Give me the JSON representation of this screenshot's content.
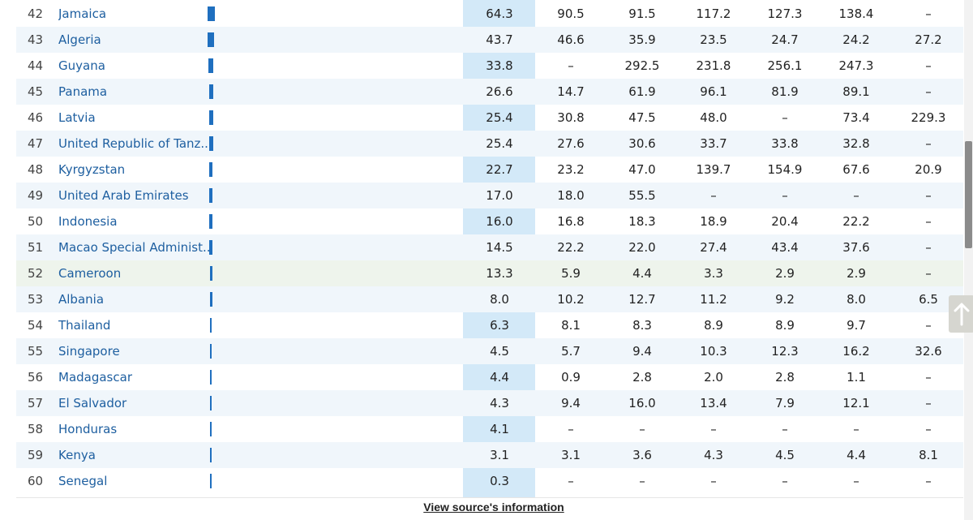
{
  "columns_x": [
    616,
    704,
    792,
    880,
    968,
    1056,
    1145
  ],
  "rows": [
    {
      "rank": "42",
      "name": "Jamaica",
      "bar": 9,
      "values": [
        "64.3",
        "90.5",
        "91.5",
        "117.2",
        "127.3",
        "138.4",
        "–"
      ]
    },
    {
      "rank": "43",
      "name": "Algeria",
      "bar": 8,
      "values": [
        "43.7",
        "46.6",
        "35.9",
        "23.5",
        "24.7",
        "24.2",
        "27.2"
      ]
    },
    {
      "rank": "44",
      "name": "Guyana",
      "bar": 6,
      "values": [
        "33.8",
        "–",
        "292.5",
        "231.8",
        "256.1",
        "247.3",
        "–"
      ]
    },
    {
      "rank": "45",
      "name": "Panama",
      "bar": 5,
      "values": [
        "26.6",
        "14.7",
        "61.9",
        "96.1",
        "81.9",
        "89.1",
        "–"
      ]
    },
    {
      "rank": "46",
      "name": "Latvia",
      "bar": 5,
      "values": [
        "25.4",
        "30.8",
        "47.5",
        "48.0",
        "–",
        "73.4",
        "229.3"
      ]
    },
    {
      "rank": "47",
      "name": "United Republic of Tanz...",
      "bar": 5,
      "values": [
        "25.4",
        "27.6",
        "30.6",
        "33.7",
        "33.8",
        "32.8",
        "–"
      ]
    },
    {
      "rank": "48",
      "name": "Kyrgyzstan",
      "bar": 4,
      "values": [
        "22.7",
        "23.2",
        "47.0",
        "139.7",
        "154.9",
        "67.6",
        "20.9"
      ]
    },
    {
      "rank": "49",
      "name": "United Arab Emirates",
      "bar": 4,
      "values": [
        "17.0",
        "18.0",
        "55.5",
        "–",
        "–",
        "–",
        "–"
      ]
    },
    {
      "rank": "50",
      "name": "Indonesia",
      "bar": 4,
      "values": [
        "16.0",
        "16.8",
        "18.3",
        "18.9",
        "20.4",
        "22.2",
        "–"
      ]
    },
    {
      "rank": "51",
      "name": "Macao Special Administ...",
      "bar": 4,
      "values": [
        "14.5",
        "22.2",
        "22.0",
        "27.4",
        "43.4",
        "37.6",
        "–"
      ]
    },
    {
      "rank": "52",
      "name": "Cameroon",
      "bar": 3,
      "values": [
        "13.3",
        "5.9",
        "4.4",
        "3.3",
        "2.9",
        "2.9",
        "–"
      ]
    },
    {
      "rank": "53",
      "name": "Albania",
      "bar": 3,
      "values": [
        "8.0",
        "10.2",
        "12.7",
        "11.2",
        "9.2",
        "8.0",
        "6.5"
      ]
    },
    {
      "rank": "54",
      "name": "Thailand",
      "bar": 2,
      "values": [
        "6.3",
        "8.1",
        "8.3",
        "8.9",
        "8.9",
        "9.7",
        "–"
      ]
    },
    {
      "rank": "55",
      "name": "Singapore",
      "bar": 2,
      "values": [
        "4.5",
        "5.7",
        "9.4",
        "10.3",
        "12.3",
        "16.2",
        "32.6"
      ]
    },
    {
      "rank": "56",
      "name": "Madagascar",
      "bar": 2,
      "values": [
        "4.4",
        "0.9",
        "2.8",
        "2.0",
        "2.8",
        "1.1",
        "–"
      ]
    },
    {
      "rank": "57",
      "name": "El Salvador",
      "bar": 2,
      "values": [
        "4.3",
        "9.4",
        "16.0",
        "13.4",
        "7.9",
        "12.1",
        "–"
      ]
    },
    {
      "rank": "58",
      "name": "Honduras",
      "bar": 2,
      "values": [
        "4.1",
        "–",
        "–",
        "–",
        "–",
        "–",
        "–"
      ]
    },
    {
      "rank": "59",
      "name": "Kenya",
      "bar": 2,
      "values": [
        "3.1",
        "3.1",
        "3.6",
        "4.3",
        "4.5",
        "4.4",
        "8.1"
      ]
    },
    {
      "rank": "60",
      "name": "Senegal",
      "bar": 2,
      "values": [
        "0.3",
        "–",
        "–",
        "–",
        "–",
        "–",
        "–"
      ]
    }
  ],
  "footer": {
    "source_link": "View source's information"
  },
  "colors": {
    "link": "#1e5fa0",
    "bar": "#1f6fbf",
    "highlight_column": "#d3e9f8",
    "alt_row": "#f0f6fb",
    "highlight_row": "#eef4ec"
  },
  "icons": {
    "back_to_top": "arrow-up-icon"
  }
}
